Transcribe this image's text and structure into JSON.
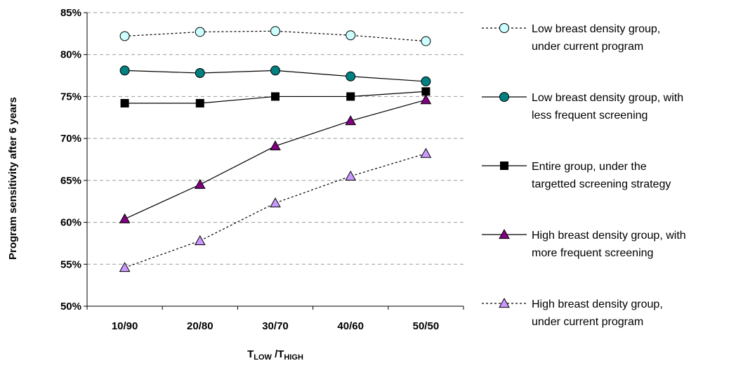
{
  "chart_data": {
    "type": "line",
    "categories": [
      "10/90",
      "20/80",
      "30/70",
      "40/60",
      "50/50"
    ],
    "ylabel": "Program sensitivity after 6 years",
    "xlabel": {
      "main1": "T",
      "sub1": "LOW",
      "sep": " /T",
      "sub2": "HIGH"
    },
    "ylim": [
      50,
      85
    ],
    "yticks": [
      "50%",
      "55%",
      "60%",
      "65%",
      "70%",
      "75%",
      "80%",
      "85%"
    ],
    "grid": "horizontal dashed",
    "legend_position": "right",
    "series": [
      {
        "name_lines": [
          "Low breast density group,",
          "under current program"
        ],
        "values": [
          82.2,
          82.7,
          82.8,
          82.3,
          81.6
        ],
        "marker": "circle",
        "marker_fill": "#ccffff",
        "line": "dotted"
      },
      {
        "name_lines": [
          "Low breast density group, with",
          "less frequent screening"
        ],
        "values": [
          78.1,
          77.8,
          78.1,
          77.4,
          76.8
        ],
        "marker": "circle",
        "marker_fill": "#008080",
        "line": "solid"
      },
      {
        "name_lines": [
          "Entire group, under the",
          "targetted screening strategy"
        ],
        "values": [
          74.2,
          74.2,
          75.0,
          75.0,
          75.6
        ],
        "marker": "square",
        "marker_fill": "#000000",
        "line": "solid"
      },
      {
        "name_lines": [
          "High breast density group, with",
          "more frequent screening"
        ],
        "values": [
          60.4,
          64.5,
          69.1,
          72.1,
          74.6
        ],
        "marker": "triangle",
        "marker_fill": "#800080",
        "line": "solid"
      },
      {
        "name_lines": [
          "High breast density group,",
          "under current program"
        ],
        "values": [
          54.6,
          57.8,
          62.3,
          65.5,
          68.2
        ],
        "marker": "triangle",
        "marker_fill": "#cc99ff",
        "line": "dotted"
      }
    ]
  }
}
